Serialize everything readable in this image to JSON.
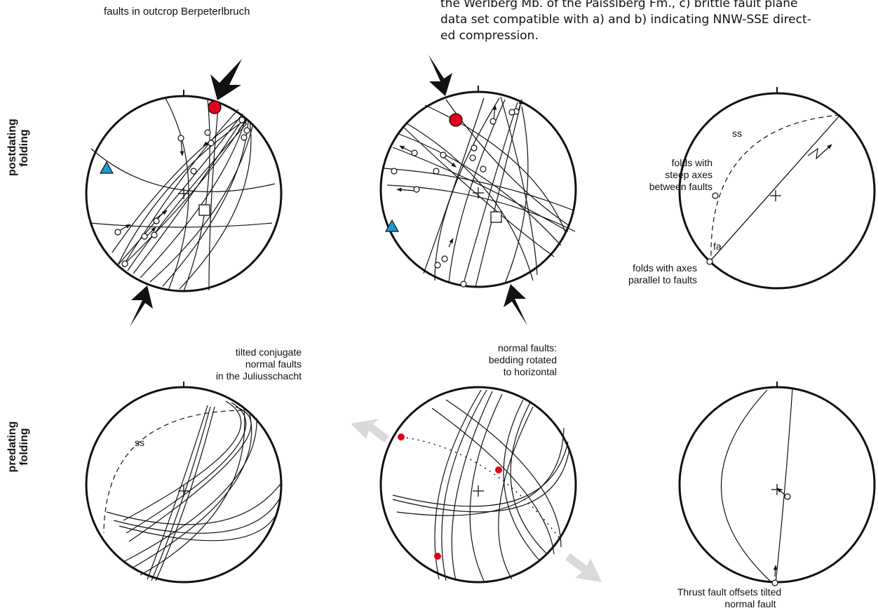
{
  "caption": {
    "lines": [
      "the Werlberg Mb. of the Paisslberg Fm., c) brittle fault plane",
      "data set compatible with a) and b) indicating NNW-SSE direct-",
      "ed compression."
    ]
  },
  "row_labels": {
    "top": [
      "postdating",
      "folding"
    ],
    "bottom": [
      "predating",
      "folding"
    ]
  },
  "stereonets": {
    "a_top": {
      "title": "faults in outcrop Berpeterlbruch"
    },
    "c_top": {
      "label_ss": "ss",
      "label_steep": [
        "folds with",
        "steep axes",
        "between faults"
      ],
      "label_fa": "fa",
      "label_parallel": [
        "folds with axes",
        "parallel to faults"
      ]
    },
    "a_bottom": {
      "title": [
        "tilted conjugate",
        "normal faults",
        "in the Juliusschacht"
      ],
      "label_ss": "ss"
    },
    "b_bottom": {
      "title": [
        "normal faults:",
        "bedding rotated",
        "to horizontal"
      ]
    },
    "c_bottom": {
      "label": [
        "Thrust fault offsets tilted",
        "normal fault"
      ]
    }
  },
  "colors": {
    "sigma1_marker": "#e2001a",
    "sigma3_marker": "#1b9ad6",
    "arrow": "#111111",
    "extension_arrow": "#d9d9d9"
  }
}
